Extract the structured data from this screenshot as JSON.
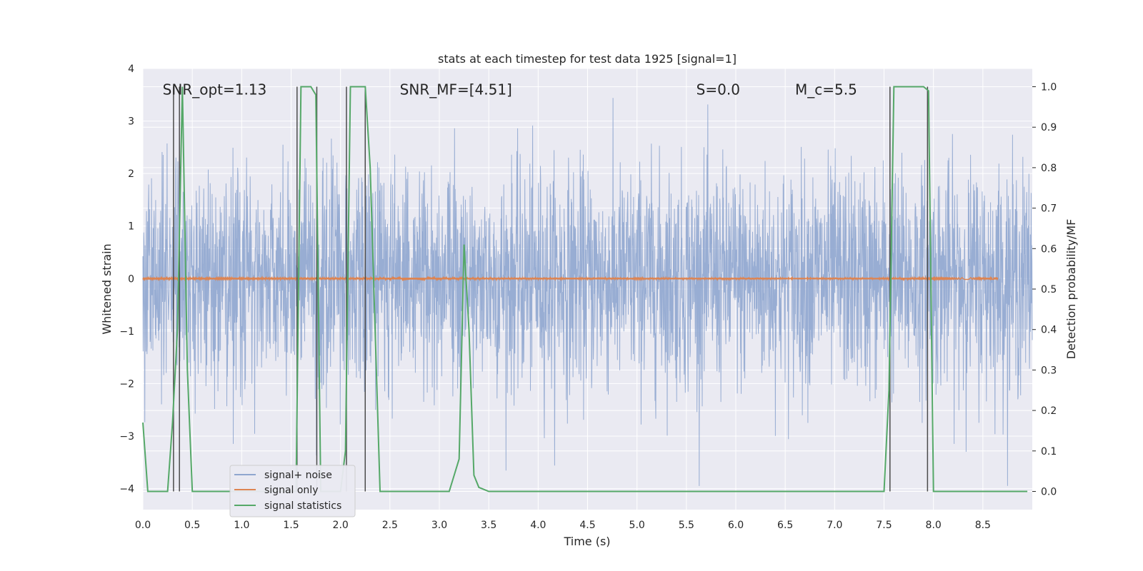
{
  "chart_data": {
    "type": "line",
    "title": "stats at each timestep for test data 1925 [signal=1]",
    "xlabel": "Time (s)",
    "ylabel": "Whitened strain",
    "y2label": "Detection probability/MF",
    "xlim": [
      0.0,
      9.0
    ],
    "ylim": [
      -4.4,
      4.0
    ],
    "y2lim": [
      -0.045,
      1.045
    ],
    "xticks": [
      "0.0",
      "0.5",
      "1.0",
      "1.5",
      "2.0",
      "2.5",
      "3.0",
      "3.5",
      "4.0",
      "4.5",
      "5.0",
      "5.5",
      "6.0",
      "6.5",
      "7.0",
      "7.5",
      "8.0",
      "8.5"
    ],
    "xtick_values": [
      0.0,
      0.5,
      1.0,
      1.5,
      2.0,
      2.5,
      3.0,
      3.5,
      4.0,
      4.5,
      5.0,
      5.5,
      6.0,
      6.5,
      7.0,
      7.5,
      8.0,
      8.5
    ],
    "yticks": [
      "4",
      "3",
      "2",
      "1",
      "0",
      "−1",
      "−2",
      "−3",
      "−4"
    ],
    "ytick_values": [
      4,
      3,
      2,
      1,
      0,
      -1,
      -2,
      -3,
      -4
    ],
    "y2ticks": [
      "1.0",
      "0.9",
      "0.8",
      "0.7",
      "0.6",
      "0.5",
      "0.4",
      "0.3",
      "0.2",
      "0.1",
      "0.0"
    ],
    "y2tick_values": [
      1.0,
      0.9,
      0.8,
      0.7,
      0.6,
      0.5,
      0.4,
      0.3,
      0.2,
      0.1,
      0.0
    ],
    "grid": true,
    "legend_position": "lower-left",
    "annotations": [
      {
        "text": "SNR_opt=1.13",
        "x": 0.2,
        "y": 3.6
      },
      {
        "text": "SNR_MF=[4.51]",
        "x": 2.6,
        "y": 3.6
      },
      {
        "text": "S=0.0",
        "x": 5.6,
        "y": 3.6
      },
      {
        "text": "M_c=5.5",
        "x": 6.6,
        "y": 3.6
      }
    ],
    "series": [
      {
        "name": "signal+ noise",
        "color": "#8fa6cf",
        "kind": "noise",
        "t_range": [
          0.0,
          9.0
        ],
        "amplitude_std": 1.0
      },
      {
        "name": "signal only",
        "color": "#dd8452",
        "kind": "chirp",
        "t_range": [
          0.0,
          8.65
        ],
        "merger_time": 8.65,
        "peak_amplitude": 0.13
      },
      {
        "name": "signal statistics",
        "color": "#55a868",
        "x": [
          0.0,
          0.05,
          0.15,
          0.25,
          0.3,
          0.35,
          0.4,
          0.45,
          0.5,
          1.0,
          1.5,
          1.55,
          1.6,
          1.7,
          1.75,
          1.8,
          2.0,
          2.05,
          2.1,
          2.15,
          2.25,
          2.3,
          2.4,
          2.5,
          3.0,
          3.1,
          3.2,
          3.25,
          3.3,
          3.35,
          3.4,
          3.5,
          4.0,
          5.0,
          6.0,
          7.0,
          7.5,
          7.55,
          7.6,
          7.7,
          7.8,
          7.9,
          7.95,
          8.0,
          8.05,
          8.15,
          8.5,
          8.95
        ],
        "y": [
          0.17,
          0.0,
          0.0,
          0.0,
          0.17,
          0.4,
          1.0,
          0.3,
          0.0,
          0.0,
          0.0,
          0.0,
          1.0,
          1.0,
          0.98,
          0.0,
          0.0,
          0.1,
          1.0,
          1.0,
          1.0,
          0.8,
          0.0,
          0.0,
          0.0,
          0.0,
          0.08,
          0.61,
          0.4,
          0.04,
          0.01,
          0.0,
          0.0,
          0.0,
          0.0,
          0.0,
          0.0,
          0.25,
          1.0,
          1.0,
          1.0,
          1.0,
          0.99,
          0.0,
          0.0,
          0.0,
          0.0,
          0.0
        ]
      }
    ],
    "vlines": [
      0.31,
      0.37,
      1.56,
      1.76,
      2.06,
      2.25,
      7.56,
      7.94
    ],
    "vline_color": "#4c4c4c",
    "vline_range": [
      0.0,
      1.0
    ]
  }
}
